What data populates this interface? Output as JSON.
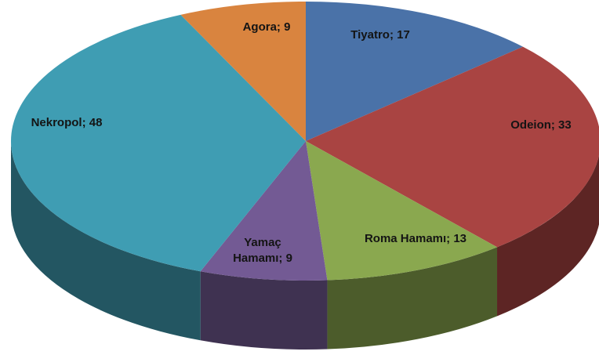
{
  "chart_data": {
    "type": "pie3d",
    "categories": [
      "Tiyatro",
      "Odeion",
      "Roma Hamamı",
      "Yamaç Hamamı",
      "Nekropol",
      "Agora"
    ],
    "values": [
      17,
      33,
      13,
      9,
      48,
      9
    ],
    "value_labels": [
      "Tiyatro; 17",
      "Odeion; 33",
      "Roma Hamamı; 13",
      "Yamaç Hamamı; 9",
      "Nekropol; 48",
      "Agora; 9"
    ],
    "colors": [
      "#4a72a8",
      "#a94442",
      "#8aa84f",
      "#735a94",
      "#3f9db3",
      "#d9843f"
    ]
  }
}
